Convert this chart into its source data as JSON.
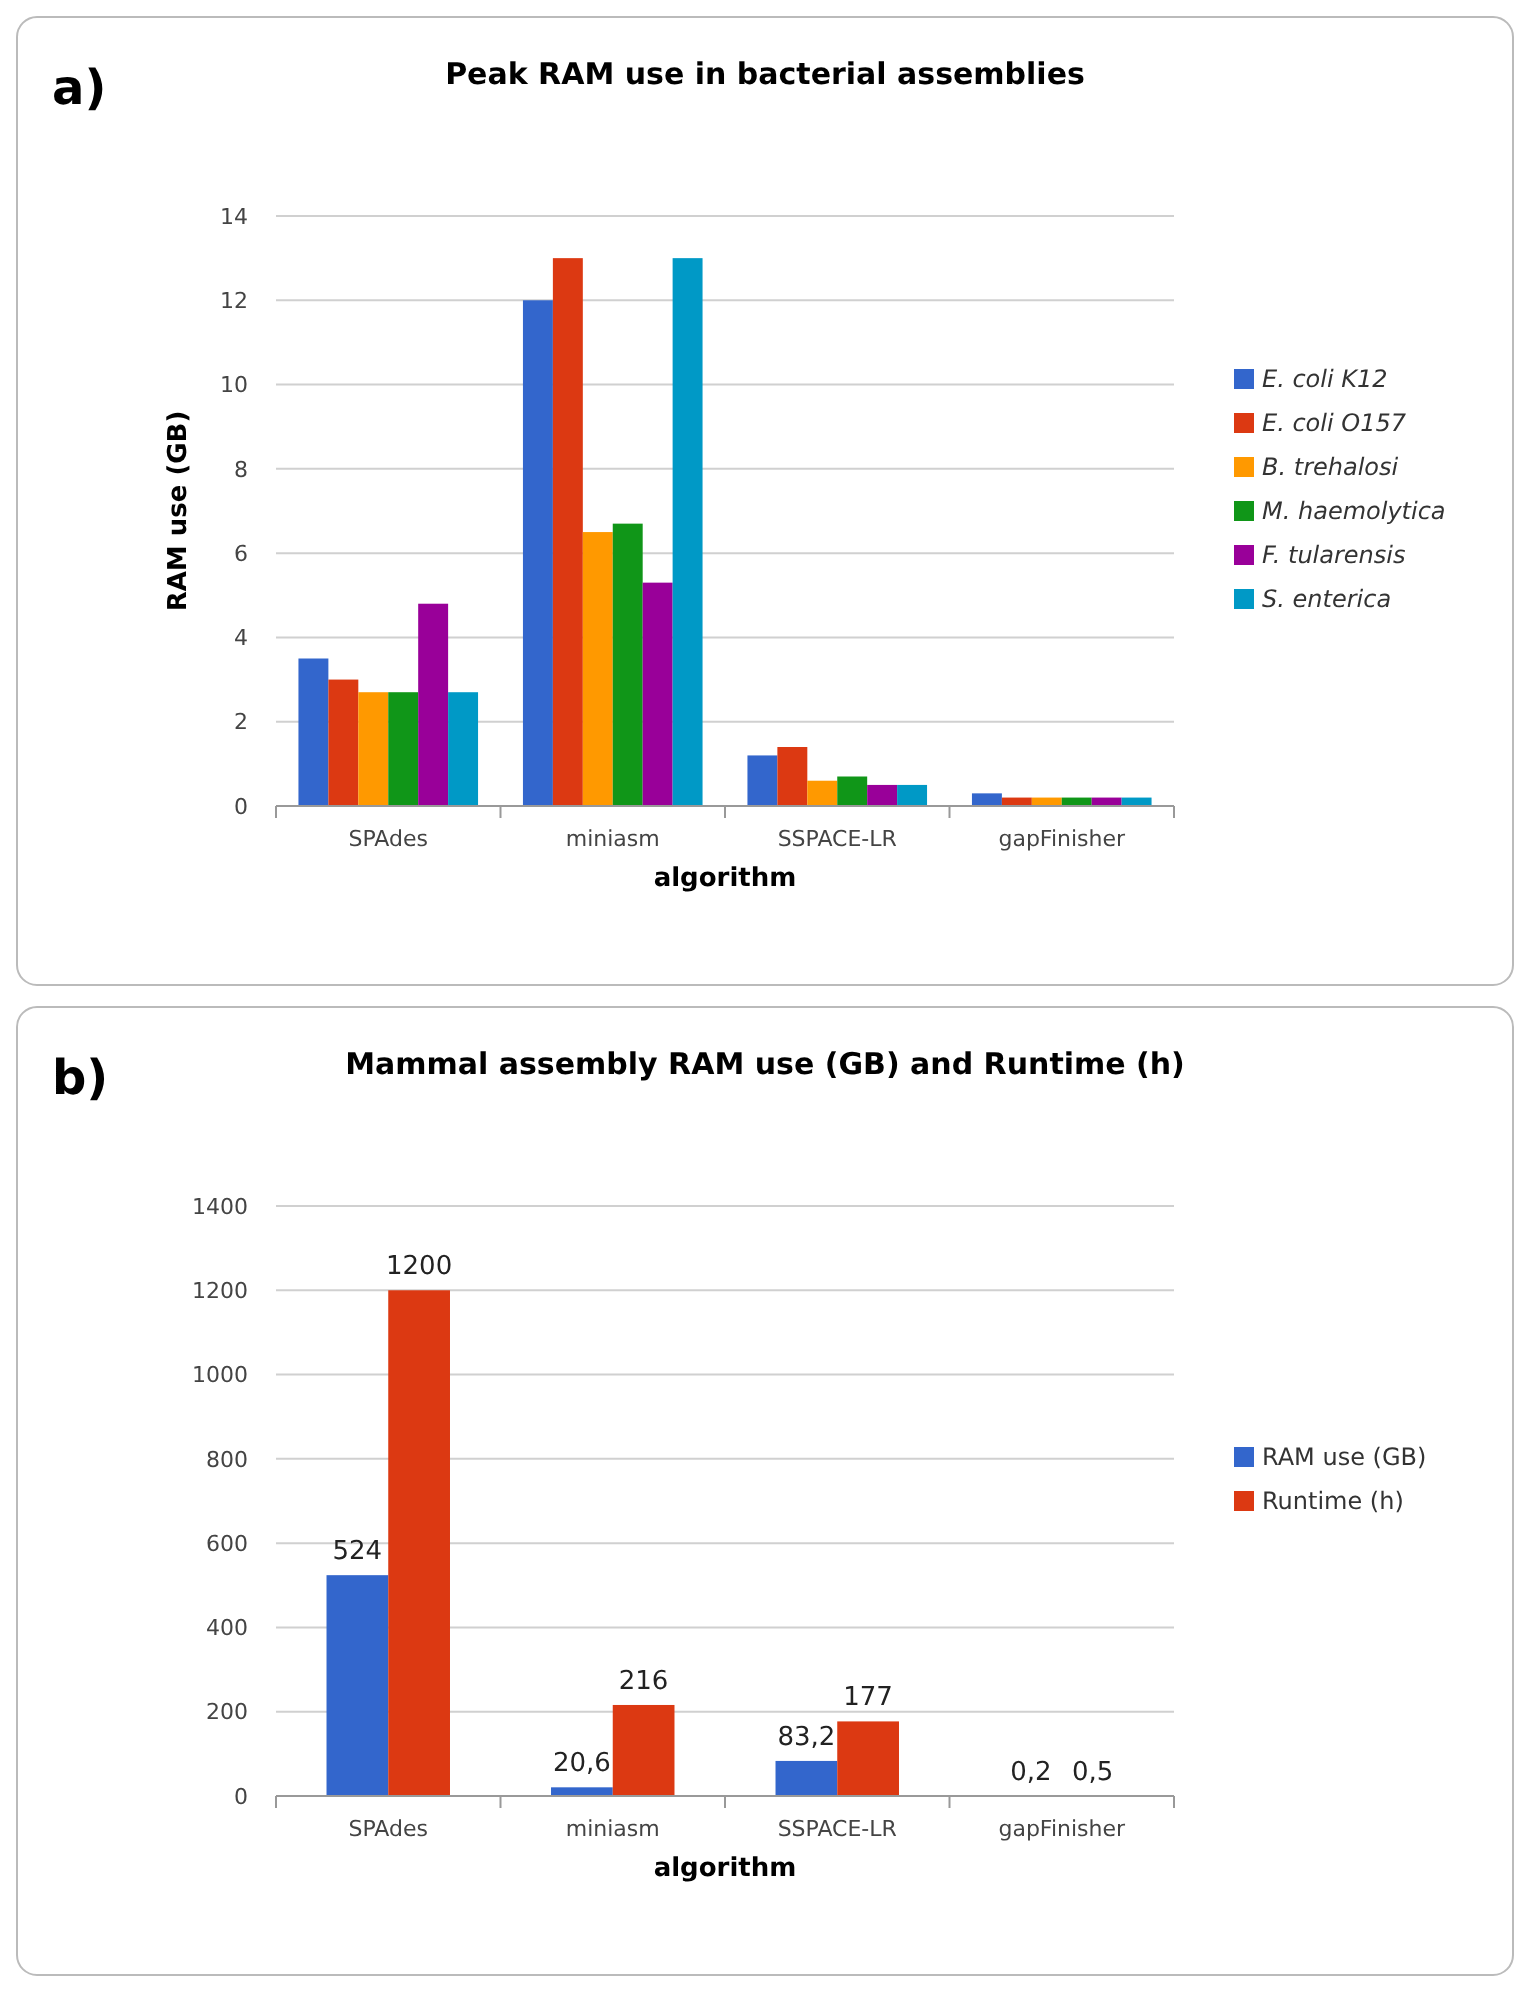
{
  "chart_data": [
    {
      "type": "bar",
      "title": "Peak RAM use in bacterial assemblies",
      "xlabel": "algorithm",
      "ylabel": "RAM use (GB)",
      "annotations": [
        "a)"
      ],
      "categories": [
        "SPAdes",
        "miniasm",
        "SSPACE-LR",
        "gapFinisher"
      ],
      "series": [
        {
          "name": "E. coli K12",
          "color": "#3366cc",
          "values": [
            3.5,
            12,
            1.2,
            0.3
          ]
        },
        {
          "name": "E. coli O157",
          "color": "#dc3912",
          "values": [
            3.0,
            13,
            1.4,
            0.2
          ]
        },
        {
          "name": "B. trehalosi",
          "color": "#ff9900",
          "values": [
            2.7,
            6.5,
            0.6,
            0.2
          ]
        },
        {
          "name": "M. haemolytica",
          "color": "#109618",
          "values": [
            2.7,
            6.7,
            0.7,
            0.2
          ]
        },
        {
          "name": "F. tularensis",
          "color": "#990099",
          "values": [
            4.8,
            5.3,
            0.5,
            0.2
          ]
        },
        {
          "name": "S. enterica",
          "color": "#0099c6",
          "values": [
            2.7,
            13,
            0.5,
            0.2
          ]
        }
      ],
      "ylim": [
        0,
        14
      ],
      "yticks": [
        0,
        2,
        4,
        6,
        8,
        10,
        12,
        14
      ],
      "grid": "y",
      "legend": "right"
    },
    {
      "type": "bar",
      "title": "Mammal assembly RAM use (GB) and Runtime (h)",
      "xlabel": "algorithm",
      "annotations": [
        "b)"
      ],
      "categories": [
        "SPAdes",
        "miniasm",
        "SSPACE-LR",
        "gapFinisher"
      ],
      "series": [
        {
          "name": "RAM use (GB)",
          "color": "#3366cc",
          "values": [
            524,
            20.6,
            83.2,
            0.2
          ],
          "value_labels": [
            "524",
            "20,6",
            "83,2",
            "0,2"
          ]
        },
        {
          "name": "Runtime (h)",
          "color": "#dc3912",
          "values": [
            1200,
            216,
            177,
            0.5
          ],
          "value_labels": [
            "1200",
            "216",
            "177",
            "0,5"
          ]
        }
      ],
      "ylim": [
        0,
        1400
      ],
      "yticks": [
        0,
        200,
        400,
        600,
        800,
        1000,
        1200,
        1400
      ],
      "grid": "y",
      "legend": "right"
    }
  ]
}
